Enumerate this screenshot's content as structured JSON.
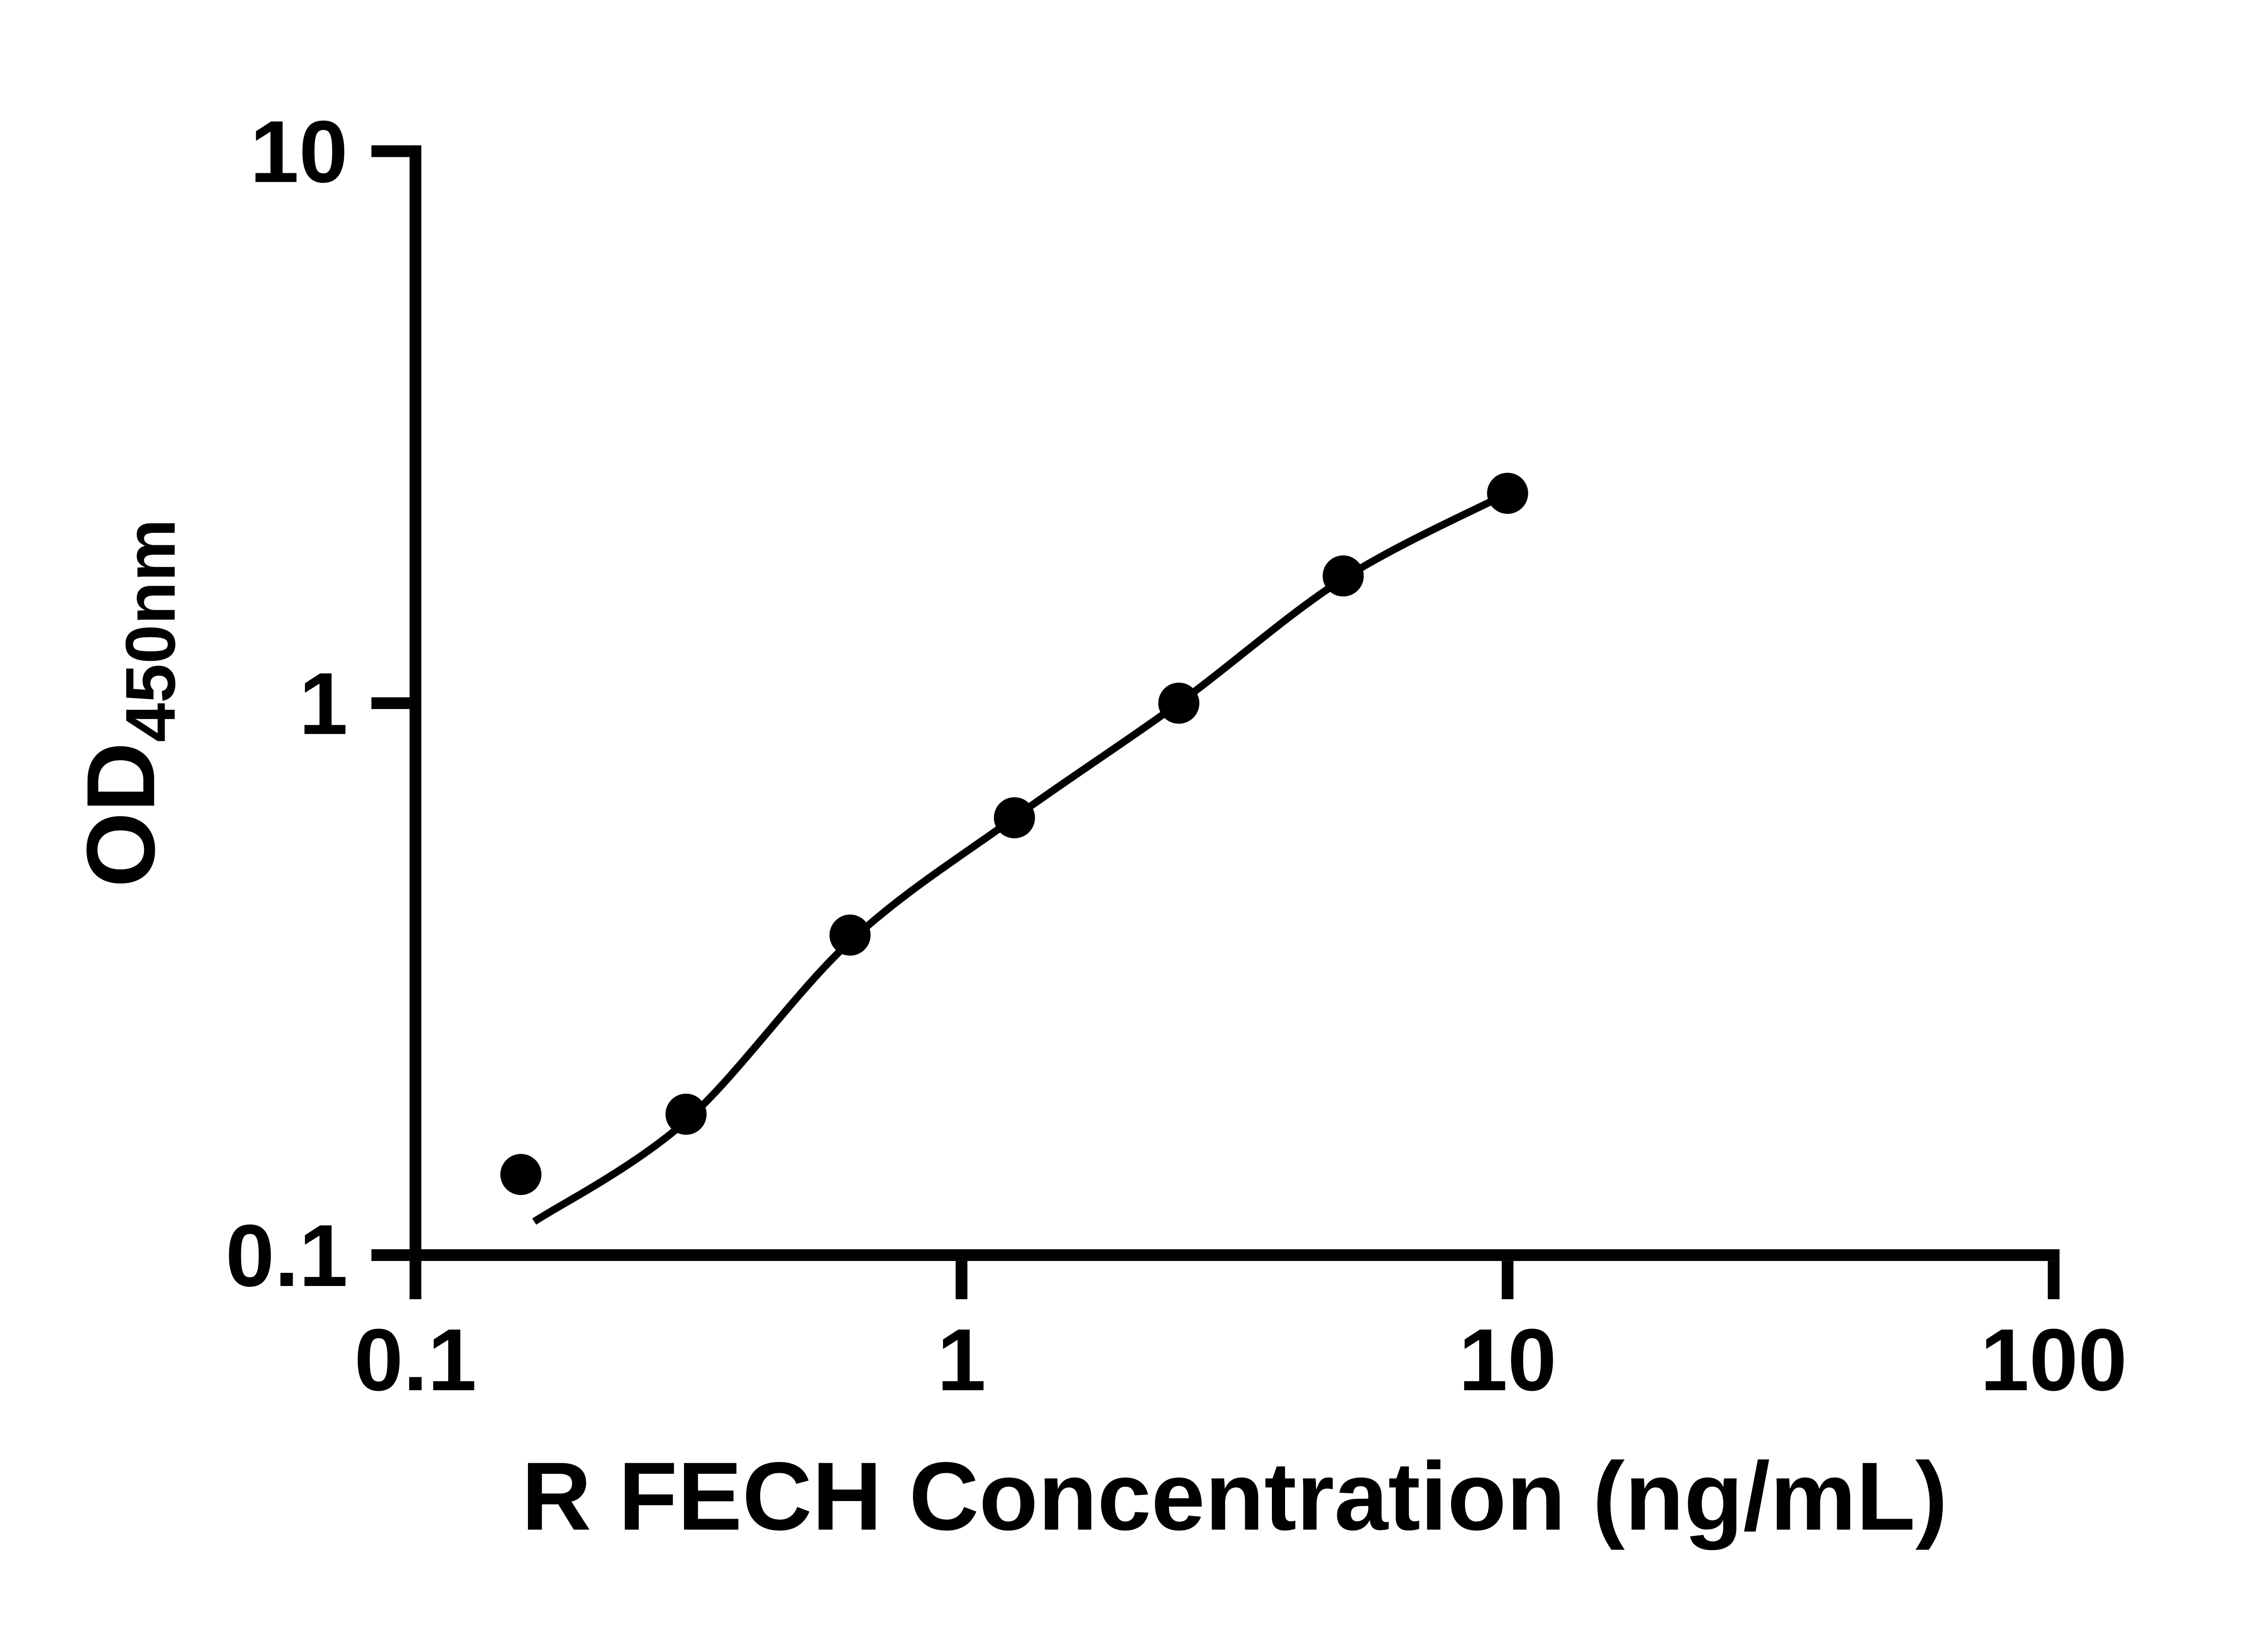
{
  "page": {
    "background_color": "#ffffff",
    "foreground_color": "#000000"
  },
  "chart_data": {
    "type": "scatter",
    "title": "",
    "xlabel": "R FECH Concentration (ng/mL)",
    "ylabel": "OD",
    "ylabel_subscript": "450nm",
    "x_scale": "log",
    "y_scale": "log",
    "xlim": [
      0.1,
      100
    ],
    "ylim": [
      0.1,
      10
    ],
    "xticks": [
      "0.1",
      "1",
      "10",
      "100"
    ],
    "yticks": [
      "0.1",
      "1",
      "10"
    ],
    "grid": false,
    "legend": "none",
    "marker_color": "#000000",
    "line_color": "#000000",
    "points": {
      "x": [
        0.156,
        0.313,
        0.625,
        1.25,
        2.5,
        5,
        10
      ],
      "y": [
        0.14,
        0.18,
        0.38,
        0.62,
        1.0,
        1.7,
        2.4
      ]
    },
    "fit_curve": {
      "x": [
        0.165,
        0.313,
        0.625,
        1.25,
        2.5,
        5,
        10
      ],
      "y": [
        0.115,
        0.175,
        0.37,
        0.62,
        1.0,
        1.68,
        2.4
      ]
    }
  }
}
